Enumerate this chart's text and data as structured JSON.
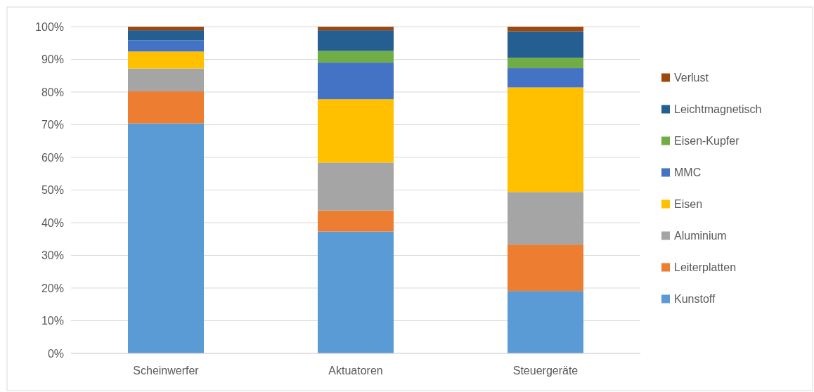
{
  "chart_data": {
    "type": "bar",
    "stacked": true,
    "categories": [
      "Scheinwerfer",
      "Aktuatoren",
      "Steuergeräte"
    ],
    "series": [
      {
        "name": "Kunstoff",
        "color": "#5b9bd5",
        "values": [
          70.4,
          37.3,
          19.1
        ]
      },
      {
        "name": "Leiterplatten",
        "color": "#ed7d31",
        "values": [
          9.8,
          6.4,
          14.2
        ]
      },
      {
        "name": "Aluminium",
        "color": "#a5a5a5",
        "values": [
          7.0,
          14.7,
          16.1
        ]
      },
      {
        "name": "Eisen",
        "color": "#ffc000",
        "values": [
          5.2,
          19.4,
          32.0
        ]
      },
      {
        "name": "MMC",
        "color": "#4472c4",
        "values": [
          3.4,
          11.2,
          5.9
        ]
      },
      {
        "name": "Eisen-Kupfer",
        "color": "#70ad47",
        "values": [
          0,
          3.6,
          3.2
        ]
      },
      {
        "name": "Leichtmagnetisch",
        "color": "#255e91",
        "values": [
          3.1,
          6.3,
          8.1
        ]
      },
      {
        "name": "Verlust",
        "color": "#9e480e",
        "values": [
          1.1,
          1.1,
          1.4
        ]
      }
    ],
    "ylim": [
      0,
      100
    ],
    "yticks": [
      {
        "value": 0,
        "label": "0%"
      },
      {
        "value": 10,
        "label": "10%"
      },
      {
        "value": 20,
        "label": "20%"
      },
      {
        "value": 30,
        "label": "30%"
      },
      {
        "value": 40,
        "label": "40%"
      },
      {
        "value": 50,
        "label": "50%"
      },
      {
        "value": 60,
        "label": "60%"
      },
      {
        "value": 70,
        "label": "70%"
      },
      {
        "value": 80,
        "label": "80%"
      },
      {
        "value": 90,
        "label": "90%"
      },
      {
        "value": 100,
        "label": "100%"
      }
    ],
    "grid": "y",
    "legend": "right"
  }
}
